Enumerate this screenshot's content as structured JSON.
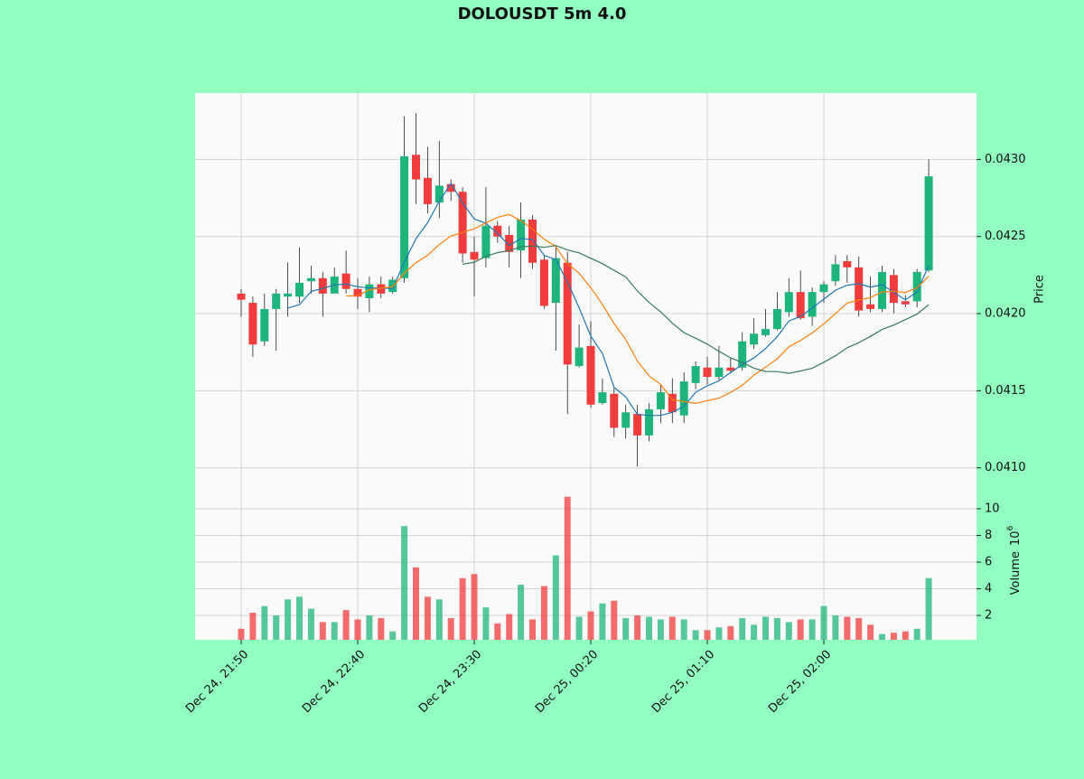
{
  "chart_data": {
    "type": "candlestick",
    "title": "DOLOUSDT 5m 4.0",
    "ylabel": "Price",
    "volume_label": "Volume",
    "volume_scale": "10",
    "volume_scale_exp": "6",
    "x": [
      "Dec 24, 21:50",
      "Dec 24, 21:55",
      "Dec 24, 22:00",
      "Dec 24, 22:05",
      "Dec 24, 22:10",
      "Dec 24, 22:15",
      "Dec 24, 22:20",
      "Dec 24, 22:25",
      "Dec 24, 22:30",
      "Dec 24, 22:35",
      "Dec 24, 22:40",
      "Dec 24, 22:45",
      "Dec 24, 22:50",
      "Dec 24, 22:55",
      "Dec 24, 23:00",
      "Dec 24, 23:05",
      "Dec 24, 23:10",
      "Dec 24, 23:15",
      "Dec 24, 23:20",
      "Dec 24, 23:25",
      "Dec 24, 23:30",
      "Dec 24, 23:35",
      "Dec 24, 23:40",
      "Dec 24, 23:45",
      "Dec 24, 23:50",
      "Dec 24, 23:55",
      "Dec 25, 00:00",
      "Dec 25, 00:05",
      "Dec 25, 00:10",
      "Dec 25, 00:15",
      "Dec 25, 00:20",
      "Dec 25, 00:25",
      "Dec 25, 00:30",
      "Dec 25, 00:35",
      "Dec 25, 00:40",
      "Dec 25, 00:45",
      "Dec 25, 00:50",
      "Dec 25, 00:55",
      "Dec 25, 01:00",
      "Dec 25, 01:05",
      "Dec 25, 01:10",
      "Dec 25, 01:15",
      "Dec 25, 01:20",
      "Dec 25, 01:25",
      "Dec 25, 01:30",
      "Dec 25, 01:35",
      "Dec 25, 01:40",
      "Dec 25, 01:45",
      "Dec 25, 01:50",
      "Dec 25, 01:55",
      "Dec 25, 02:00",
      "Dec 25, 02:05",
      "Dec 25, 02:10",
      "Dec 25, 02:15",
      "Dec 25, 02:20",
      "Dec 25, 02:25",
      "Dec 25, 02:30",
      "Dec 25, 02:35",
      "Dec 25, 02:40",
      "Dec 25, 02:45"
    ],
    "open": [
      0.04213,
      0.04207,
      0.04182,
      0.04203,
      0.04211,
      0.04211,
      0.04221,
      0.04223,
      0.04213,
      0.04226,
      0.04216,
      0.0421,
      0.04219,
      0.04214,
      0.04223,
      0.04303,
      0.04288,
      0.04272,
      0.04284,
      0.04279,
      0.0424,
      0.04236,
      0.04257,
      0.04251,
      0.04241,
      0.04261,
      0.04235,
      0.04207,
      0.04233,
      0.04166,
      0.04179,
      0.04142,
      0.04148,
      0.04126,
      0.04135,
      0.04121,
      0.04138,
      0.04148,
      0.04134,
      0.04155,
      0.04165,
      0.04159,
      0.04165,
      0.04165,
      0.0418,
      0.04186,
      0.0419,
      0.04201,
      0.04214,
      0.04198,
      0.04214,
      0.04221,
      0.04234,
      0.0423,
      0.04206,
      0.04203,
      0.04225,
      0.04208,
      0.04208,
      0.04228
    ],
    "high": [
      0.04216,
      0.04211,
      0.04213,
      0.04216,
      0.04233,
      0.04243,
      0.04231,
      0.04227,
      0.0423,
      0.04241,
      0.04223,
      0.04224,
      0.04224,
      0.04224,
      0.04328,
      0.0433,
      0.04308,
      0.04312,
      0.04287,
      0.04282,
      0.0425,
      0.04282,
      0.0426,
      0.04257,
      0.04272,
      0.04264,
      0.04238,
      0.04244,
      0.0424,
      0.04193,
      0.04195,
      0.04158,
      0.04152,
      0.04141,
      0.04141,
      0.04142,
      0.04154,
      0.04158,
      0.04162,
      0.04169,
      0.04172,
      0.04179,
      0.04171,
      0.04188,
      0.04197,
      0.04203,
      0.04214,
      0.04223,
      0.04228,
      0.04217,
      0.04221,
      0.04238,
      0.04238,
      0.04237,
      0.04224,
      0.04231,
      0.04229,
      0.04212,
      0.04229,
      0.043
    ],
    "low": [
      0.04198,
      0.04172,
      0.04179,
      0.04176,
      0.04198,
      0.04207,
      0.04213,
      0.04198,
      0.04213,
      0.04213,
      0.04203,
      0.04201,
      0.0421,
      0.04213,
      0.0422,
      0.04271,
      0.04265,
      0.04262,
      0.04273,
      0.04233,
      0.04211,
      0.0423,
      0.04246,
      0.0423,
      0.04223,
      0.04229,
      0.04203,
      0.04176,
      0.04135,
      0.04165,
      0.04139,
      0.04141,
      0.0412,
      0.04119,
      0.04101,
      0.04117,
      0.04129,
      0.04129,
      0.04129,
      0.04151,
      0.04154,
      0.04157,
      0.04162,
      0.04163,
      0.04177,
      0.04185,
      0.04189,
      0.04198,
      0.04196,
      0.04192,
      0.04207,
      0.04218,
      0.0422,
      0.04198,
      0.04201,
      0.04201,
      0.042,
      0.04204,
      0.04204,
      0.04227
    ],
    "close": [
      0.04209,
      0.0418,
      0.04203,
      0.04213,
      0.04213,
      0.0422,
      0.04223,
      0.04213,
      0.04224,
      0.04216,
      0.04211,
      0.04219,
      0.04213,
      0.04222,
      0.04302,
      0.04287,
      0.04271,
      0.04283,
      0.04279,
      0.04239,
      0.04235,
      0.04257,
      0.0425,
      0.0424,
      0.04261,
      0.04233,
      0.04205,
      0.04236,
      0.04167,
      0.04178,
      0.04141,
      0.04149,
      0.04126,
      0.04136,
      0.04121,
      0.04138,
      0.04149,
      0.04136,
      0.04156,
      0.04166,
      0.04159,
      0.04165,
      0.04163,
      0.04182,
      0.04187,
      0.0419,
      0.04203,
      0.04214,
      0.04197,
      0.04214,
      0.04219,
      0.04232,
      0.0423,
      0.04202,
      0.04203,
      0.04227,
      0.04207,
      0.04206,
      0.04227,
      0.04289
    ],
    "volume": [
      1.0,
      2.2,
      2.7,
      2.0,
      3.2,
      3.4,
      2.5,
      1.5,
      1.5,
      2.4,
      1.7,
      2.0,
      1.8,
      0.8,
      8.7,
      5.6,
      3.4,
      3.2,
      1.8,
      4.8,
      5.1,
      2.6,
      1.4,
      2.1,
      4.3,
      1.7,
      4.2,
      6.5,
      10.9,
      1.9,
      2.3,
      2.9,
      3.1,
      1.8,
      2.0,
      1.9,
      1.7,
      1.9,
      1.7,
      0.9,
      0.9,
      1.1,
      1.2,
      1.8,
      1.3,
      1.9,
      1.8,
      1.5,
      1.7,
      1.7,
      2.7,
      2.0,
      1.9,
      1.8,
      1.3,
      0.6,
      0.7,
      0.8,
      1.0,
      4.8
    ],
    "up_color": "#1db57b",
    "down_color": "#f03c3c",
    "mav": [
      5,
      10,
      20
    ],
    "mav_colors": [
      "#1f77b4",
      "#ff7f0e",
      "#3a7a5e"
    ],
    "ylim": [
      0.04084,
      0.04343
    ],
    "yticks": [
      {
        "value": 0.041,
        "label": "0.0410"
      },
      0.0415,
      {
        "value": 0.042,
        "label": "0.0420"
      },
      0.0425,
      {
        "value": 0.043,
        "label": "0.0430"
      }
    ],
    "volume_ylim": [
      0.17,
      11.08
    ],
    "volume_yticks": [
      2,
      4,
      6,
      8,
      10
    ],
    "xticks": [
      "Dec 24, 21:50",
      "Dec 24, 22:40",
      "Dec 24, 23:30",
      "Dec 25, 00:20",
      "Dec 25, 01:10",
      "Dec 25, 02:00"
    ],
    "grid": true
  }
}
